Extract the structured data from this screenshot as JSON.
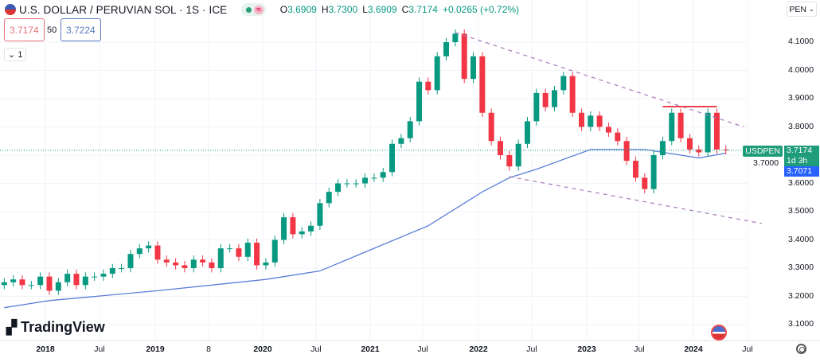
{
  "header": {
    "title": "U.S. DOLLAR / PERUVIAN SOL · 1S · ICE",
    "open_label": "O",
    "open": "3.6909",
    "high_label": "H",
    "high": "3.7300",
    "low_label": "L",
    "low": "3.6909",
    "close_label": "C",
    "close": "3.7174",
    "change": "+0.0265 (+0.72%)",
    "market_status_icon": "dot-green",
    "approx_icon": "≈"
  },
  "quote": {
    "sell": "3.7174",
    "spread": "50",
    "buy": "3.7224",
    "collapse": "⌄ 1"
  },
  "currency": {
    "label": "PEN"
  },
  "price_tags": {
    "symbol": "USDPEN",
    "last": "3.7174",
    "countdown": "1d 3h",
    "ma": "3.7071"
  },
  "logo": {
    "text": "TradingView"
  },
  "colors": {
    "up": "#089981",
    "down": "#f23645",
    "ma": "#5b7fd8",
    "trend": "#a678b6",
    "resistance": "#e8424e",
    "tag_green": "#1f9c7a",
    "tag_blue": "#2962ff"
  },
  "chart_data": {
    "type": "candlestick",
    "symbol": "USDPEN",
    "ylim": [
      3.05,
      4.15
    ],
    "yticks": [
      "4.1000",
      "4.0000",
      "3.9000",
      "3.8000",
      "3.7000",
      "3.6000",
      "3.5000",
      "3.4000",
      "3.3000",
      "3.2000",
      "3.1000"
    ],
    "xticks": [
      "2018",
      "Jul",
      "2019",
      "8",
      "2020",
      "Jul",
      "2021",
      "Jul",
      "2022",
      "Jul",
      "2023",
      "Jul",
      "2024",
      "Jul"
    ],
    "grid": true,
    "closes": [
      [
        "2017-08",
        3.25
      ],
      [
        "2017-09",
        3.26
      ],
      [
        "2017-10",
        3.24
      ],
      [
        "2017-11",
        3.24
      ],
      [
        "2017-12",
        3.27
      ],
      [
        "2018-01",
        3.22
      ],
      [
        "2018-02",
        3.25
      ],
      [
        "2018-03",
        3.28
      ],
      [
        "2018-04",
        3.24
      ],
      [
        "2018-05",
        3.27
      ],
      [
        "2018-06",
        3.27
      ],
      [
        "2018-07",
        3.28
      ],
      [
        "2018-08",
        3.3
      ],
      [
        "2018-09",
        3.3
      ],
      [
        "2018-10",
        3.35
      ],
      [
        "2018-11",
        3.37
      ],
      [
        "2018-12",
        3.38
      ],
      [
        "2019-01",
        3.33
      ],
      [
        "2019-02",
        3.32
      ],
      [
        "2019-03",
        3.31
      ],
      [
        "2019-04",
        3.3
      ],
      [
        "2019-05",
        3.33
      ],
      [
        "2019-06",
        3.32
      ],
      [
        "2019-07",
        3.3
      ],
      [
        "2019-08",
        3.37
      ],
      [
        "2019-09",
        3.37
      ],
      [
        "2019-10",
        3.34
      ],
      [
        "2019-11",
        3.39
      ],
      [
        "2019-12",
        3.31
      ],
      [
        "2020-01",
        3.32
      ],
      [
        "2020-02",
        3.4
      ],
      [
        "2020-03",
        3.48
      ],
      [
        "2020-04",
        3.42
      ],
      [
        "2020-05",
        3.43
      ],
      [
        "2020-06",
        3.45
      ],
      [
        "2020-07",
        3.53
      ],
      [
        "2020-08",
        3.57
      ],
      [
        "2020-09",
        3.6
      ],
      [
        "2020-10",
        3.6
      ],
      [
        "2020-11",
        3.6
      ],
      [
        "2020-12",
        3.62
      ],
      [
        "2021-01",
        3.62
      ],
      [
        "2021-02",
        3.64
      ],
      [
        "2021-03",
        3.74
      ],
      [
        "2021-04",
        3.76
      ],
      [
        "2021-05",
        3.82
      ],
      [
        "2021-06",
        3.96
      ],
      [
        "2021-07",
        3.93
      ],
      [
        "2021-08",
        4.05
      ],
      [
        "2021-09",
        4.1
      ],
      [
        "2021-10",
        4.13
      ],
      [
        "2021-11",
        3.97
      ],
      [
        "2021-12",
        4.05
      ],
      [
        "2022-01",
        3.85
      ],
      [
        "2022-02",
        3.75
      ],
      [
        "2022-03",
        3.7
      ],
      [
        "2022-04",
        3.66
      ],
      [
        "2022-05",
        3.74
      ],
      [
        "2022-06",
        3.82
      ],
      [
        "2022-07",
        3.92
      ],
      [
        "2022-08",
        3.87
      ],
      [
        "2022-09",
        3.93
      ],
      [
        "2022-10",
        3.98
      ],
      [
        "2022-11",
        3.85
      ],
      [
        "2022-12",
        3.8
      ],
      [
        "2023-01",
        3.84
      ],
      [
        "2023-02",
        3.8
      ],
      [
        "2023-03",
        3.78
      ],
      [
        "2023-04",
        3.75
      ],
      [
        "2023-05",
        3.68
      ],
      [
        "2023-06",
        3.62
      ],
      [
        "2023-07",
        3.58
      ],
      [
        "2023-08",
        3.7
      ],
      [
        "2023-09",
        3.75
      ],
      [
        "2023-10",
        3.85
      ],
      [
        "2023-11",
        3.76
      ],
      [
        "2023-12",
        3.72
      ],
      [
        "2024-01",
        3.71
      ],
      [
        "2024-02",
        3.85
      ],
      [
        "2024-03",
        3.72
      ],
      [
        "2024-04",
        3.7174
      ]
    ],
    "moving_average": [
      [
        "2017-08",
        3.16
      ],
      [
        "2018-01",
        3.185
      ],
      [
        "2019-01",
        3.22
      ],
      [
        "2020-01",
        3.26
      ],
      [
        "2020-07",
        3.29
      ],
      [
        "2020-10",
        3.33
      ],
      [
        "2021-01",
        3.37
      ],
      [
        "2021-07",
        3.45
      ],
      [
        "2022-01",
        3.57
      ],
      [
        "2022-04",
        3.62
      ],
      [
        "2022-07",
        3.65
      ],
      [
        "2023-01",
        3.72
      ],
      [
        "2023-07",
        3.72
      ],
      [
        "2024-01",
        3.69
      ],
      [
        "2024-04",
        3.7071
      ]
    ],
    "trendlines": [
      {
        "style": "dashed",
        "from": [
          "2021-10",
          4.134
        ],
        "to": [
          "2024-06",
          3.8
        ]
      },
      {
        "style": "dashed",
        "from": [
          "2022-04",
          3.624
        ],
        "to": [
          "2024-08",
          3.458
        ]
      }
    ],
    "horizontal_lines": [
      {
        "price": 3.872,
        "from": "2023-09",
        "to": "2024-03"
      }
    ]
  }
}
